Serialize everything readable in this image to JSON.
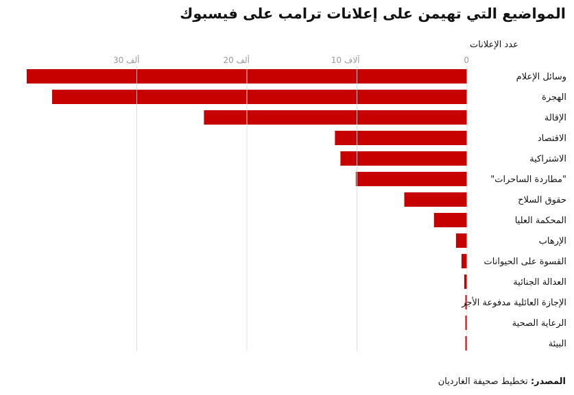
{
  "chart_data": {
    "type": "bar",
    "title": "المواضيع التي تهيمن على إعلانات ترامب على فيسبوك",
    "xlabel": "عدد الإعلانات",
    "ylabel": "",
    "xlim": [
      0,
      40000
    ],
    "grid": true,
    "tick_values": [
      0,
      10000,
      20000,
      30000
    ],
    "tick_labels": [
      "0",
      "10 آلاف",
      "20 ألف",
      "30 ألف"
    ],
    "categories": [
      "وسائل الإعلام",
      "الهجرة",
      "الإقالة",
      "الاقتصاد",
      "الاشتراكية",
      "\"مطاردة الساحرات\"",
      "حقوق السلاح",
      "المحكمة العليا",
      "الإرهاب",
      "القسوة على الحيوانات",
      "العدالة الجنائية",
      "الإجازة العائلية مدفوعة الأجر",
      "الرعاية الصحية",
      "البيئة"
    ],
    "values": [
      40000,
      37700,
      23900,
      12000,
      11500,
      10100,
      5700,
      3000,
      1000,
      500,
      250,
      150,
      150,
      150
    ],
    "bar_color": "#c70000",
    "grid_color": "#dcdcdc"
  },
  "source": {
    "label": "المصدر:",
    "text": "تخطيط صحيفة الغارديان"
  }
}
